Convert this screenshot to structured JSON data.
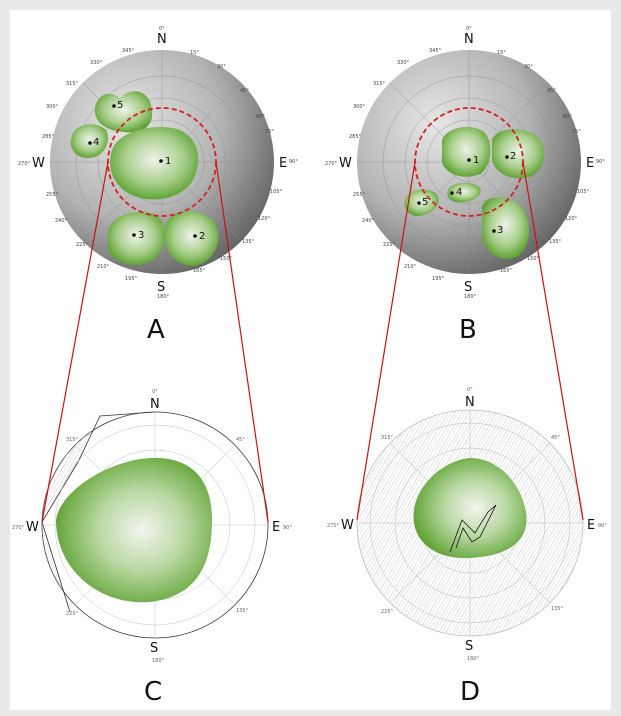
{
  "panels": {
    "A": {
      "label": "A"
    },
    "B": {
      "label": "B"
    },
    "C": {
      "label": "C"
    },
    "D": {
      "label": "D"
    }
  },
  "compass": {
    "N": "N",
    "E": "E",
    "S": "S",
    "W": "W"
  },
  "ticks": {
    "d0": "0°",
    "d15": "15°",
    "d30": "30°",
    "d45": "45°",
    "d60": "60°",
    "d75": "75°",
    "d90": "90°",
    "d105": "105°",
    "d120": "120°",
    "d135": "135°",
    "d150": "150°",
    "d165": "165°",
    "d180": "180°",
    "d195": "195°",
    "d210": "210°",
    "d225": "225°",
    "d240": "240°",
    "d255": "255°",
    "d270": "270°",
    "d285": "285°",
    "d300": "300°",
    "d315": "315°",
    "d330": "330°",
    "d345": "345°"
  },
  "points": {
    "A": [
      "1",
      "2",
      "3",
      "4",
      "5"
    ],
    "B": [
      "1",
      "2",
      "3",
      "4",
      "5"
    ]
  },
  "colors": {
    "sphere_dark": "#6f6f6f",
    "sphere_light": "#dcdcdc",
    "blob_green": "#5aa12a",
    "ring_red": "#d42020",
    "connector_red": "#cc1111"
  }
}
